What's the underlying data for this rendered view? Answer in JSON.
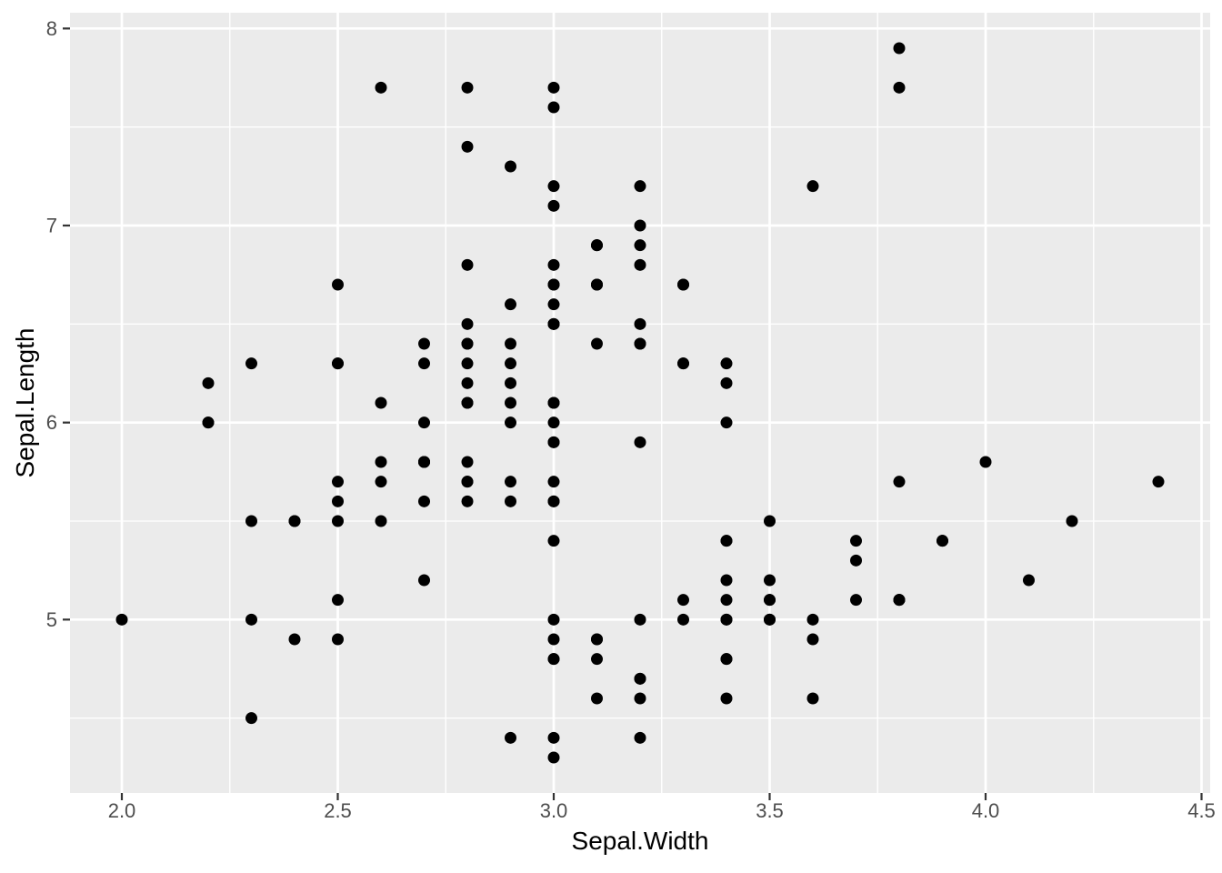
{
  "chart_data": {
    "type": "scatter",
    "title": "",
    "xlabel": "Sepal.Width",
    "ylabel": "Sepal.Length",
    "xlim": [
      1.88,
      4.52
    ],
    "ylim": [
      4.12,
      8.08
    ],
    "x_ticks": [
      2.0,
      2.5,
      3.0,
      3.5,
      4.0,
      4.5
    ],
    "x_tick_labels": [
      "2.0",
      "2.5",
      "3.0",
      "3.5",
      "4.0",
      "4.5"
    ],
    "y_ticks": [
      5,
      6,
      7,
      8
    ],
    "y_tick_labels": [
      "5",
      "6",
      "7",
      "8"
    ],
    "x_minor_ticks": [
      2.25,
      2.75,
      3.25,
      3.75,
      4.25
    ],
    "y_minor_ticks": [
      4.5,
      5.5,
      6.5,
      7.5
    ],
    "grid": "major-and-minor",
    "legend_position": "none",
    "colors": {
      "panel_background": "#EBEBEB",
      "gridline": "#FFFFFF",
      "tick_label": "#4D4D4D",
      "tick_mark": "#333333",
      "axis_title": "#000000",
      "point": "#000000"
    },
    "series": [
      {
        "name": "points",
        "x_variable": "Sepal.Width",
        "y_variable": "Sepal.Length",
        "points": [
          [
            3.5,
            5.1
          ],
          [
            3.0,
            4.9
          ],
          [
            3.2,
            4.7
          ],
          [
            3.1,
            4.6
          ],
          [
            3.6,
            5.0
          ],
          [
            3.9,
            5.4
          ],
          [
            3.4,
            4.6
          ],
          [
            3.4,
            5.0
          ],
          [
            2.9,
            4.4
          ],
          [
            3.1,
            4.9
          ],
          [
            3.7,
            5.4
          ],
          [
            3.4,
            4.8
          ],
          [
            3.0,
            4.8
          ],
          [
            3.0,
            4.3
          ],
          [
            4.0,
            5.8
          ],
          [
            4.4,
            5.7
          ],
          [
            3.9,
            5.4
          ],
          [
            3.5,
            5.1
          ],
          [
            3.8,
            5.7
          ],
          [
            3.8,
            5.1
          ],
          [
            3.4,
            5.4
          ],
          [
            3.7,
            5.1
          ],
          [
            3.6,
            4.6
          ],
          [
            3.3,
            5.1
          ],
          [
            3.4,
            4.8
          ],
          [
            3.0,
            5.0
          ],
          [
            3.4,
            5.0
          ],
          [
            3.5,
            5.2
          ],
          [
            3.4,
            5.2
          ],
          [
            3.2,
            4.7
          ],
          [
            3.1,
            4.8
          ],
          [
            3.4,
            5.4
          ],
          [
            4.1,
            5.2
          ],
          [
            4.2,
            5.5
          ],
          [
            3.1,
            4.9
          ],
          [
            3.2,
            5.0
          ],
          [
            3.5,
            5.5
          ],
          [
            3.6,
            4.9
          ],
          [
            3.0,
            4.4
          ],
          [
            3.4,
            5.1
          ],
          [
            3.5,
            5.0
          ],
          [
            2.3,
            4.5
          ],
          [
            3.2,
            4.4
          ],
          [
            3.5,
            5.0
          ],
          [
            3.8,
            5.1
          ],
          [
            3.0,
            4.8
          ],
          [
            3.8,
            5.1
          ],
          [
            3.2,
            4.6
          ],
          [
            3.7,
            5.3
          ],
          [
            3.3,
            5.0
          ],
          [
            3.2,
            7.0
          ],
          [
            3.2,
            6.4
          ],
          [
            3.1,
            6.9
          ],
          [
            2.3,
            5.5
          ],
          [
            2.8,
            6.5
          ],
          [
            2.8,
            5.7
          ],
          [
            3.3,
            6.3
          ],
          [
            2.4,
            4.9
          ],
          [
            2.9,
            6.6
          ],
          [
            2.7,
            5.2
          ],
          [
            2.0,
            5.0
          ],
          [
            3.0,
            5.9
          ],
          [
            2.2,
            6.0
          ],
          [
            2.9,
            6.1
          ],
          [
            2.9,
            5.6
          ],
          [
            3.1,
            6.7
          ],
          [
            3.0,
            5.6
          ],
          [
            2.7,
            5.8
          ],
          [
            2.2,
            6.2
          ],
          [
            2.5,
            5.6
          ],
          [
            3.2,
            5.9
          ],
          [
            2.8,
            6.1
          ],
          [
            2.5,
            6.3
          ],
          [
            2.8,
            6.1
          ],
          [
            2.9,
            6.4
          ],
          [
            3.0,
            6.6
          ],
          [
            2.8,
            6.8
          ],
          [
            3.0,
            6.7
          ],
          [
            2.9,
            6.0
          ],
          [
            2.6,
            5.7
          ],
          [
            2.4,
            5.5
          ],
          [
            2.4,
            5.5
          ],
          [
            2.7,
            5.8
          ],
          [
            2.7,
            6.0
          ],
          [
            3.0,
            5.4
          ],
          [
            3.4,
            6.0
          ],
          [
            3.1,
            6.7
          ],
          [
            2.3,
            6.3
          ],
          [
            3.0,
            5.6
          ],
          [
            2.5,
            5.5
          ],
          [
            2.6,
            5.5
          ],
          [
            3.0,
            6.1
          ],
          [
            2.6,
            5.8
          ],
          [
            2.3,
            5.0
          ],
          [
            2.7,
            5.6
          ],
          [
            3.0,
            5.7
          ],
          [
            2.9,
            5.7
          ],
          [
            2.9,
            6.2
          ],
          [
            2.5,
            5.1
          ],
          [
            2.8,
            5.7
          ],
          [
            3.3,
            6.3
          ],
          [
            2.7,
            5.8
          ],
          [
            3.0,
            7.1
          ],
          [
            2.9,
            6.3
          ],
          [
            3.0,
            6.5
          ],
          [
            3.0,
            7.6
          ],
          [
            2.5,
            4.9
          ],
          [
            2.9,
            7.3
          ],
          [
            2.5,
            6.7
          ],
          [
            3.6,
            7.2
          ],
          [
            3.2,
            6.5
          ],
          [
            2.7,
            6.4
          ],
          [
            3.0,
            6.8
          ],
          [
            2.5,
            5.7
          ],
          [
            2.8,
            5.8
          ],
          [
            3.2,
            6.4
          ],
          [
            3.0,
            6.5
          ],
          [
            3.8,
            7.7
          ],
          [
            2.6,
            7.7
          ],
          [
            2.2,
            6.0
          ],
          [
            3.2,
            6.9
          ],
          [
            2.8,
            5.6
          ],
          [
            2.8,
            7.7
          ],
          [
            2.7,
            6.3
          ],
          [
            3.3,
            6.7
          ],
          [
            3.2,
            7.2
          ],
          [
            2.8,
            6.2
          ],
          [
            3.0,
            6.1
          ],
          [
            2.8,
            6.4
          ],
          [
            3.0,
            7.2
          ],
          [
            2.8,
            7.4
          ],
          [
            3.8,
            7.9
          ],
          [
            2.8,
            6.4
          ],
          [
            2.8,
            6.3
          ],
          [
            2.6,
            6.1
          ],
          [
            3.0,
            7.7
          ],
          [
            3.4,
            6.3
          ],
          [
            3.1,
            6.4
          ],
          [
            3.0,
            6.0
          ],
          [
            3.1,
            6.9
          ],
          [
            3.1,
            6.7
          ],
          [
            3.1,
            6.9
          ],
          [
            2.7,
            5.8
          ],
          [
            3.2,
            6.8
          ],
          [
            3.3,
            6.7
          ],
          [
            3.0,
            6.7
          ],
          [
            2.5,
            6.3
          ],
          [
            3.0,
            6.5
          ],
          [
            3.4,
            6.2
          ],
          [
            3.0,
            5.9
          ]
        ]
      }
    ]
  }
}
